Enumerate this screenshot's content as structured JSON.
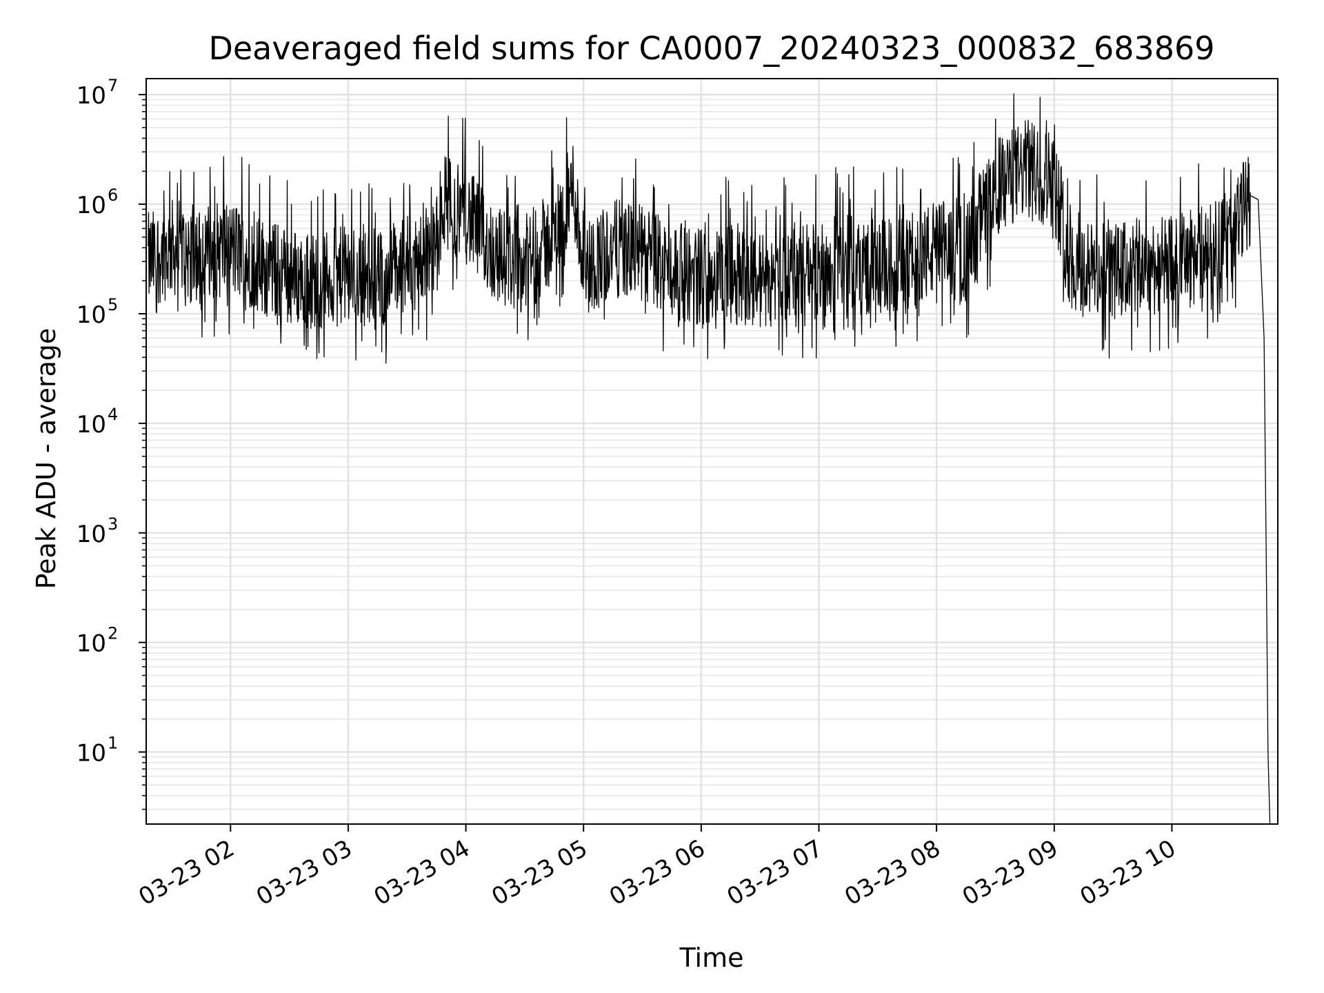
{
  "chart_data": {
    "type": "line",
    "title": "Deaveraged field sums for CA0007_20240323_000832_683869",
    "xlabel": "Time",
    "ylabel": "Peak ADU - average",
    "x_scale": "time",
    "y_scale": "log",
    "xlim": [
      "03-23 01:17",
      "03-23 10:54"
    ],
    "ylim": [
      2.2,
      14000000
    ],
    "x_ticks": [
      "03-23 02",
      "03-23 03",
      "03-23 04",
      "03-23 05",
      "03-23 06",
      "03-23 07",
      "03-23 08",
      "03-23 09",
      "03-23 10"
    ],
    "y_ticks": [
      {
        "value": 10,
        "base": "10",
        "exp": "1"
      },
      {
        "value": 100,
        "base": "10",
        "exp": "2"
      },
      {
        "value": 1000,
        "base": "10",
        "exp": "3"
      },
      {
        "value": 10000,
        "base": "10",
        "exp": "4"
      },
      {
        "value": 100000,
        "base": "10",
        "exp": "5"
      },
      {
        "value": 1000000,
        "base": "10",
        "exp": "6"
      },
      {
        "value": 10000000,
        "base": "10",
        "exp": "7"
      }
    ],
    "grid": true,
    "series": [
      {
        "color": "#000000",
        "x": [
          "03-23 01:18",
          "03-23 01:30",
          "03-23 01:45",
          "03-23 02:00",
          "03-23 02:15",
          "03-23 02:30",
          "03-23 02:45",
          "03-23 03:00",
          "03-23 03:15",
          "03-23 03:30",
          "03-23 03:45",
          "03-23 03:48",
          "03-23 04:00",
          "03-23 04:15",
          "03-23 04:30",
          "03-23 04:45",
          "03-23 04:55",
          "03-23 05:00",
          "03-23 05:15",
          "03-23 05:30",
          "03-23 05:45",
          "03-23 06:00",
          "03-23 06:15",
          "03-23 06:30",
          "03-23 06:45",
          "03-23 07:00",
          "03-23 07:15",
          "03-23 07:30",
          "03-23 07:45",
          "03-23 08:00",
          "03-23 08:15",
          "03-23 08:30",
          "03-23 08:45",
          "03-23 09:00",
          "03-23 09:08",
          "03-23 09:15",
          "03-23 09:30",
          "03-23 09:45",
          "03-23 10:00",
          "03-23 10:15",
          "03-23 10:30",
          "03-23 10:40",
          "03-23 10:44",
          "03-23 10:47",
          "03-23 10:48",
          "03-23 10:49",
          "03-23 10:50"
        ],
        "y": [
          300000,
          400000,
          350000,
          400000,
          280000,
          220000,
          200000,
          230000,
          200000,
          280000,
          400000,
          1100000,
          800000,
          350000,
          280000,
          500000,
          1500000,
          250000,
          400000,
          350000,
          250000,
          220000,
          230000,
          200000,
          240000,
          250000,
          300000,
          260000,
          280000,
          400000,
          350000,
          1400000,
          2100000,
          1700000,
          300000,
          250000,
          240000,
          270000,
          280000,
          350000,
          500000,
          1200000,
          1100000,
          60000,
          1000,
          10,
          2.2
        ]
      }
    ]
  }
}
